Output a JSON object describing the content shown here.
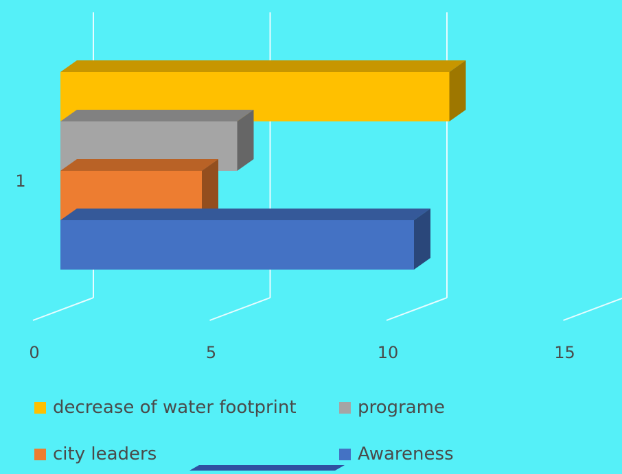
{
  "chart_data": {
    "type": "bar",
    "orientation": "horizontal",
    "three_d": true,
    "categories": [
      "1"
    ],
    "series": [
      {
        "name": "decrease of water footprint",
        "values": [
          11
        ],
        "color": "#FFC000"
      },
      {
        "name": "programe",
        "values": [
          5
        ],
        "color": "#A5A5A5"
      },
      {
        "name": "city leaders",
        "values": [
          4
        ],
        "color": "#ED7D31"
      },
      {
        "name": "Awareness",
        "values": [
          10
        ],
        "color": "#4472C4"
      }
    ],
    "x_ticks": [
      "0",
      "5",
      "10",
      "15"
    ],
    "xlim": [
      0,
      15
    ],
    "grid": true,
    "legend_position": "bottom",
    "colors": {
      "background": "#55F0F8",
      "gridline": "#E8FCFF",
      "text": "#4A4A4A"
    }
  }
}
